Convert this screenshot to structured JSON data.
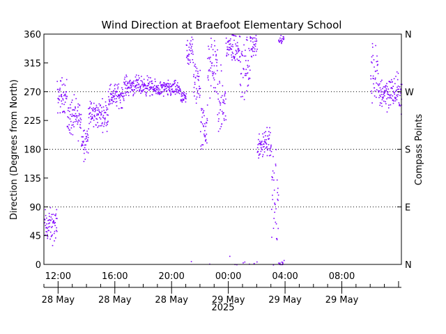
{
  "chart_data": {
    "type": "scatter",
    "title": "Wind Direction at Braefoot Elementary School",
    "ylabel": "Direction (Degrees from North)",
    "y2label": "Compass Points",
    "ylim": [
      0,
      360
    ],
    "yticks": [
      "0",
      "45",
      "90",
      "135",
      "180",
      "225",
      "270",
      "315",
      "360"
    ],
    "y2ticks": [
      {
        "label": "N",
        "value": 0
      },
      {
        "label": "E",
        "value": 90
      },
      {
        "label": "S",
        "value": 180
      },
      {
        "label": "W",
        "value": 270
      },
      {
        "label": "N",
        "value": 360
      }
    ],
    "gridlines": [
      90,
      180,
      270
    ],
    "xlim_hours": [
      11.0,
      36.2
    ],
    "xticks": [
      {
        "hour": 12,
        "time": "12:00",
        "date": "28 May"
      },
      {
        "hour": 16,
        "time": "16:00",
        "date": "28 May"
      },
      {
        "hour": 20,
        "time": "20:00",
        "date": "28 May"
      },
      {
        "hour": 24,
        "time": "00:00",
        "date": "29 May"
      },
      {
        "hour": 28,
        "time": "04:00",
        "date": "29 May"
      },
      {
        "hour": 32,
        "time": "08:00",
        "date": "29 May"
      }
    ],
    "year": "2025",
    "point_color": "#7f00ff",
    "series_segments": [
      {
        "start": 11.0,
        "end": 11.9,
        "center": 60,
        "spread": 22
      },
      {
        "start": 11.9,
        "end": 12.6,
        "center": 265,
        "spread": 22
      },
      {
        "start": 12.6,
        "end": 13.6,
        "center": 230,
        "spread": 25
      },
      {
        "start": 13.6,
        "end": 14.1,
        "center": 195,
        "spread": 22
      },
      {
        "start": 14.1,
        "end": 15.5,
        "center": 235,
        "spread": 18
      },
      {
        "start": 15.5,
        "end": 16.6,
        "center": 265,
        "spread": 15
      },
      {
        "start": 16.6,
        "end": 18.5,
        "center": 280,
        "spread": 12
      },
      {
        "start": 18.5,
        "end": 20.6,
        "center": 275,
        "spread": 10
      },
      {
        "start": 20.6,
        "end": 21.0,
        "center": 260,
        "spread": 8
      },
      {
        "start": 21.0,
        "end": 21.5,
        "center": 335,
        "spread": 25
      },
      {
        "start": 21.5,
        "end": 22.0,
        "center": 285,
        "spread": 30
      },
      {
        "start": 22.0,
        "end": 22.5,
        "center": 215,
        "spread": 30
      },
      {
        "start": 22.5,
        "end": 23.2,
        "center": 310,
        "spread": 40
      },
      {
        "start": 23.2,
        "end": 23.8,
        "center": 250,
        "spread": 40
      },
      {
        "start": 23.8,
        "end": 24.8,
        "center": 340,
        "spread": 22
      },
      {
        "start": 24.8,
        "end": 25.5,
        "center": 310,
        "spread": 40
      },
      {
        "start": 25.5,
        "end": 26.0,
        "center": 345,
        "spread": 18
      },
      {
        "start": 26.0,
        "end": 26.5,
        "center": 190,
        "spread": 20
      },
      {
        "start": 26.5,
        "end": 27.0,
        "center": 195,
        "spread": 25
      },
      {
        "start": 27.0,
        "end": 27.5,
        "center": 90,
        "spread": 70
      },
      {
        "start": 27.5,
        "end": 27.9,
        "center": 355,
        "spread": 12
      },
      {
        "start": 34.0,
        "end": 34.5,
        "center": 300,
        "spread": 40
      },
      {
        "start": 34.5,
        "end": 36.2,
        "center": 270,
        "spread": 22
      }
    ]
  }
}
